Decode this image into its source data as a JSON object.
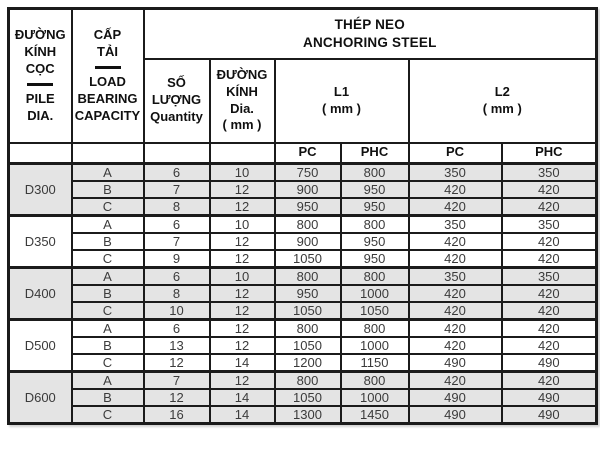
{
  "header": {
    "pile_dia": {
      "vi": "ĐƯỜNG\nKÍNH\nCỌC",
      "en": "PILE\nDIA."
    },
    "load": {
      "vi": "CẤP\nTẢI",
      "en": "LOAD\nBEARING\nCAPACITY"
    },
    "anchoring_steel": "THÉP NEO\nANCHORING STEEL",
    "quantity": "SỐ\nLƯỢNG\nQuantity",
    "dia": "ĐƯỜNG\nKÍNH\nDia.\n( mm )",
    "l1": "L1\n( mm )",
    "l2": "L2\n( mm )",
    "pc_phc": [
      "PC",
      "PHC",
      "PC",
      "PHC"
    ]
  },
  "groups": [
    {
      "pile_dia": "D300",
      "shaded": true,
      "rows": [
        {
          "load_class": "A",
          "values": [
            "6",
            "10",
            "750",
            "800",
            "350",
            "350"
          ]
        },
        {
          "load_class": "B",
          "values": [
            "7",
            "12",
            "900",
            "950",
            "420",
            "420"
          ]
        },
        {
          "load_class": "C",
          "values": [
            "8",
            "12",
            "950",
            "950",
            "420",
            "420"
          ]
        }
      ]
    },
    {
      "pile_dia": "D350",
      "shaded": false,
      "rows": [
        {
          "load_class": "A",
          "values": [
            "6",
            "10",
            "800",
            "800",
            "350",
            "350"
          ]
        },
        {
          "load_class": "B",
          "values": [
            "7",
            "12",
            "900",
            "950",
            "420",
            "420"
          ]
        },
        {
          "load_class": "C",
          "values": [
            "9",
            "12",
            "1050",
            "950",
            "420",
            "420"
          ]
        }
      ]
    },
    {
      "pile_dia": "D400",
      "shaded": true,
      "rows": [
        {
          "load_class": "A",
          "values": [
            "6",
            "10",
            "800",
            "800",
            "350",
            "350"
          ]
        },
        {
          "load_class": "B",
          "values": [
            "8",
            "12",
            "950",
            "1000",
            "420",
            "420"
          ]
        },
        {
          "load_class": "C",
          "values": [
            "10",
            "12",
            "1050",
            "1050",
            "420",
            "420"
          ]
        }
      ]
    },
    {
      "pile_dia": "D500",
      "shaded": false,
      "rows": [
        {
          "load_class": "A",
          "values": [
            "6",
            "12",
            "800",
            "800",
            "420",
            "420"
          ]
        },
        {
          "load_class": "B",
          "values": [
            "13",
            "12",
            "1050",
            "1000",
            "420",
            "420"
          ]
        },
        {
          "load_class": "C",
          "values": [
            "12",
            "14",
            "1200",
            "1150",
            "490",
            "490"
          ]
        }
      ]
    },
    {
      "pile_dia": "D600",
      "shaded": true,
      "rows": [
        {
          "load_class": "A",
          "values": [
            "7",
            "12",
            "800",
            "800",
            "420",
            "420"
          ]
        },
        {
          "load_class": "B",
          "values": [
            "12",
            "14",
            "1050",
            "1000",
            "490",
            "490"
          ]
        },
        {
          "load_class": "C",
          "values": [
            "16",
            "14",
            "1300",
            "1450",
            "490",
            "490"
          ]
        }
      ]
    }
  ],
  "colors": {
    "shaded_row": "#e4e4e4",
    "border": "#1b1b1b",
    "header_text": "#101010",
    "data_text": "#3b3b3b"
  }
}
